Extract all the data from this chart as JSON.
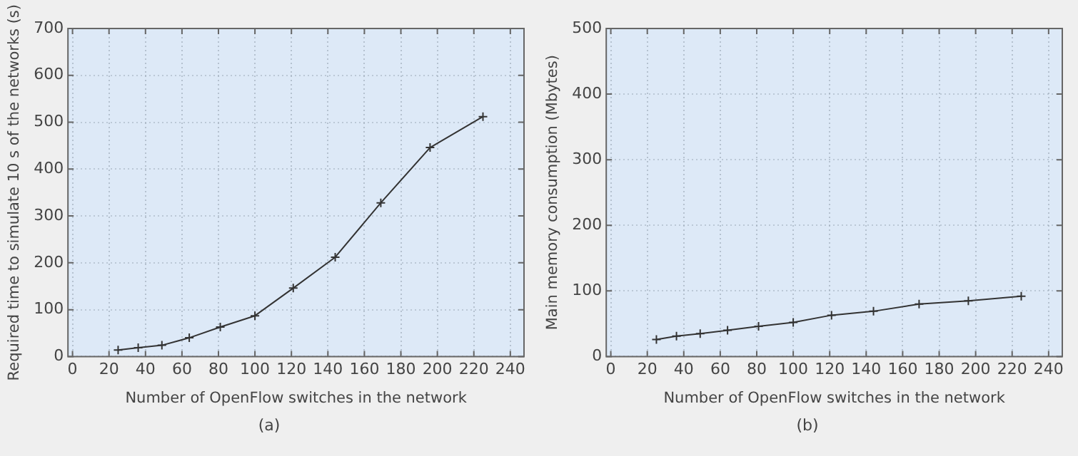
{
  "chart_data": [
    {
      "type": "line",
      "xlabel": "Number of OpenFlow switches in the network",
      "ylabel": "Required time to simulate 10 s of the networks (s)",
      "annotations": [
        "(a)"
      ],
      "x": [
        25,
        36,
        49,
        64,
        81,
        100,
        121,
        144,
        169,
        196,
        225
      ],
      "series": [
        {
          "color": "#333333",
          "values": [
            14,
            19,
            24,
            40,
            63,
            87,
            146,
            212,
            328,
            446,
            512
          ]
        }
      ],
      "xlim": [
        -2.5,
        247.5
      ],
      "xticks": [
        0,
        20,
        40,
        60,
        80,
        100,
        120,
        140,
        160,
        180,
        200,
        220,
        240
      ],
      "ylim": [
        0,
        700
      ],
      "yticks": [
        0,
        100,
        200,
        300,
        400,
        500,
        600,
        700
      ],
      "grid": true,
      "marker": "cross",
      "line_style": "solid"
    },
    {
      "type": "line",
      "xlabel": "Number of OpenFlow switches in the network",
      "ylabel": "Main memory consumption (Mbytes)",
      "annotations": [
        "(b)"
      ],
      "x": [
        25,
        36,
        49,
        64,
        81,
        100,
        121,
        144,
        169,
        196,
        225
      ],
      "series": [
        {
          "color": "#333333",
          "values": [
            26,
            31,
            35,
            40,
            46,
            52,
            63,
            69,
            80,
            85,
            92
          ]
        }
      ],
      "xlim": [
        -2.5,
        247.5
      ],
      "xticks": [
        0,
        20,
        40,
        60,
        80,
        100,
        120,
        140,
        160,
        180,
        200,
        220,
        240
      ],
      "ylim": [
        0,
        500
      ],
      "yticks": [
        0,
        100,
        200,
        300,
        400,
        500
      ],
      "grid": true,
      "marker": "cross",
      "line_style": "solid"
    }
  ]
}
